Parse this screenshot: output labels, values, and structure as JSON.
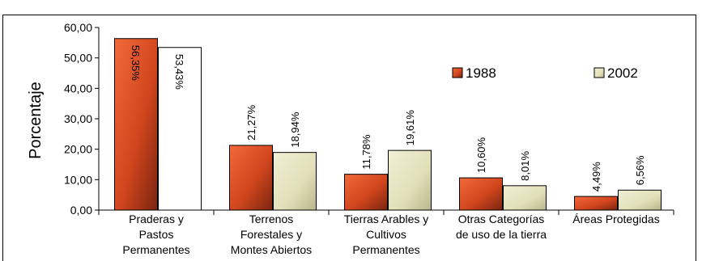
{
  "chart_data": {
    "type": "bar",
    "title": "",
    "ylabel": "Porcentaje",
    "xlabel": "",
    "ylim": [
      0,
      60
    ],
    "yticks": [
      "0,00",
      "10,00",
      "20,00",
      "30,00",
      "40,00",
      "50,00",
      "60,00"
    ],
    "categories": [
      [
        "Praderas y",
        "Pastos",
        "Permanentes"
      ],
      [
        "Terrenos",
        "Forestales y",
        "Montes Abiertos"
      ],
      [
        "Tierras Arables y",
        "Cultivos",
        "Permanentes"
      ],
      [
        "Otras Categorías",
        "de uso de la tierra"
      ],
      [
        "Áreas Protegidas"
      ]
    ],
    "series": [
      {
        "name": "1988",
        "values": [
          56.35,
          21.27,
          11.78,
          10.6,
          4.49
        ],
        "labels": [
          "56,35%",
          "21,27%",
          "11,78%",
          "10,60%",
          "4,49%"
        ],
        "color": "#e8542a"
      },
      {
        "name": "2002",
        "values": [
          53.43,
          18.94,
          19.61,
          8.01,
          6.56
        ],
        "labels": [
          "53,43%",
          "18,94%",
          "19,61%",
          "8,01%",
          "6,56%"
        ],
        "color": "#e6e3c0"
      }
    ],
    "legend_position": "top-right",
    "grid": false
  }
}
